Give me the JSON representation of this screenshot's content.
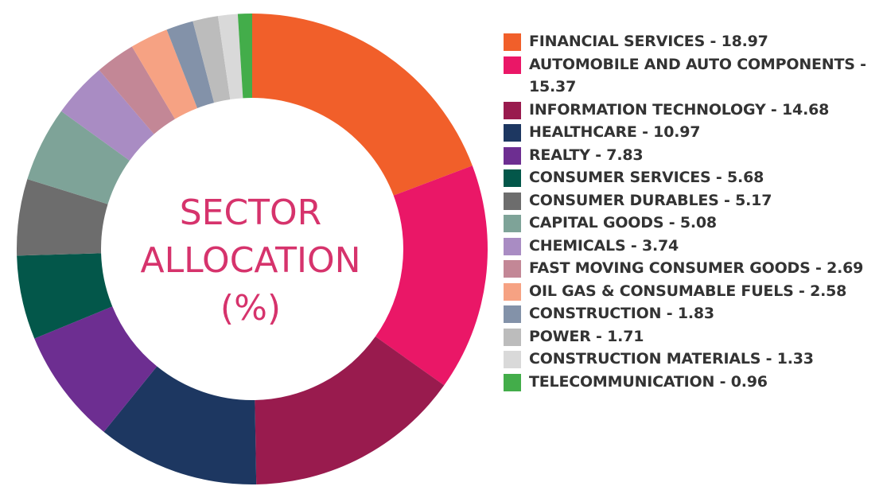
{
  "chart_data": {
    "type": "pie",
    "style": "donut",
    "title_lines": [
      "SECTOR",
      "ALLOCATION",
      "(%)"
    ],
    "legend_position": "right",
    "slices": [
      {
        "label": "FINANCIAL SERVICES",
        "legend_text": "FINANCIAL SERVICES - 18.97",
        "value": 18.97,
        "color": "#f15f2a"
      },
      {
        "label": "AUTOMOBILE AND AUTO COMPONENTS",
        "legend_text": "AUTOMOBILE AND AUTO COMPONENTS - 15.37",
        "value": 15.37,
        "color": "#ea1767"
      },
      {
        "label": "INFORMATION TECHNOLOGY",
        "legend_text": "INFORMATION TECHNOLOGY - 14.68",
        "value": 14.68,
        "color": "#991b4e"
      },
      {
        "label": "HEALTHCARE",
        "legend_text": "HEALTHCARE - 10.97",
        "value": 10.97,
        "color": "#1d3761"
      },
      {
        "label": "REALTY",
        "legend_text": "REALTY - 7.83",
        "value": 7.83,
        "color": "#6d2e91"
      },
      {
        "label": "CONSUMER SERVICES",
        "legend_text": "CONSUMER SERVICES - 5.68",
        "value": 5.68,
        "color": "#03574a"
      },
      {
        "label": "CONSUMER DURABLES",
        "legend_text": "CONSUMER DURABLES - 5.17",
        "value": 5.17,
        "color": "#6d6d6d"
      },
      {
        "label": "CAPITAL GOODS",
        "legend_text": "CAPITAL GOODS - 5.08",
        "value": 5.08,
        "color": "#7ea398"
      },
      {
        "label": "CHEMICALS",
        "legend_text": "CHEMICALS - 3.74",
        "value": 3.74,
        "color": "#a98cc3"
      },
      {
        "label": "FAST MOVING CONSUMER GOODS",
        "legend_text": "FAST MOVING CONSUMER GOODS - 2.69",
        "value": 2.69,
        "color": "#c38796"
      },
      {
        "label": "OIL GAS & CONSUMABLE FUELS",
        "legend_text": "OIL GAS & CONSUMABLE FUELS - 2.58",
        "value": 2.58,
        "color": "#f6a283"
      },
      {
        "label": "CONSTRUCTION",
        "legend_text": "CONSTRUCTION - 1.83",
        "value": 1.83,
        "color": "#8392a9"
      },
      {
        "label": "POWER",
        "legend_text": "POWER - 1.71",
        "value": 1.71,
        "color": "#bcbcbc"
      },
      {
        "label": "CONSTRUCTION MATERIALS",
        "legend_text": "CONSTRUCTION MATERIALS - 1.33",
        "value": 1.33,
        "color": "#d9d9d9"
      },
      {
        "label": "TELECOMMUNICATION",
        "legend_text": "TELECOMMUNICATION - 0.96",
        "value": 0.96,
        "color": "#43ad4a"
      }
    ]
  }
}
